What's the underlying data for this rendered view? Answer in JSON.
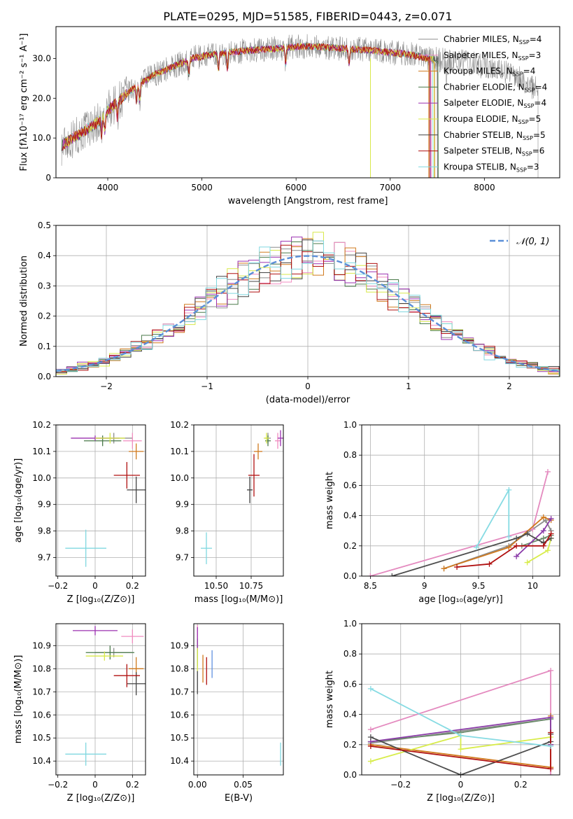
{
  "figure": {
    "title": "PLATE=0295, MJD=51585, FIBERID=0443, z=0.071"
  },
  "series_colors": [
    "#8c8c8c",
    "#f08cc0",
    "#d07a1e",
    "#4a7a4a",
    "#9b30b0",
    "#d8e84a",
    "#444444",
    "#b01010",
    "#80d8e0"
  ],
  "chart_data": [
    {
      "id": "spectrum",
      "type": "line",
      "xlabel": "wavelength [Angstrom, rest frame]",
      "ylabel": "Flux [fλ10⁻¹⁷ erg cm⁻² s⁻¹ A⁻¹]",
      "xlim": [
        3450,
        8800
      ],
      "ylim": [
        0,
        38
      ],
      "xticks": [
        4000,
        5000,
        6000,
        7000,
        8000
      ],
      "yticks": [
        0,
        10,
        20,
        30
      ],
      "legend_position": "right",
      "legend": [
        {
          "model": "Chabrier MILES",
          "n": "4",
          "color": "#8c8c8c"
        },
        {
          "model": "Salpeter MILES",
          "n": "3",
          "color": "#f08cc0"
        },
        {
          "model": "Kroupa MILES",
          "n": "4",
          "color": "#d07a1e"
        },
        {
          "model": "Chabrier ELODIE",
          "n": "4",
          "color": "#4a7a4a"
        },
        {
          "model": "Salpeter ELODIE",
          "n": "4",
          "color": "#9b30b0"
        },
        {
          "model": "Kroupa ELODIE",
          "n": "5",
          "color": "#d8e84a"
        },
        {
          "model": "Chabrier STELIB",
          "n": "5",
          "color": "#444444"
        },
        {
          "model": "Salpeter STELIB",
          "n": "6",
          "color": "#b01010"
        },
        {
          "model": "Kroupa STELIB",
          "n": "3",
          "color": "#80d8e0"
        }
      ],
      "continuum_x": [
        3500,
        3700,
        3900,
        4000,
        4100,
        4300,
        4500,
        4700,
        4900,
        5100,
        5300,
        5500,
        5800,
        6000,
        6200,
        6500,
        6800,
        7000,
        7200,
        7400,
        7600,
        7800,
        8000,
        8200,
        8400,
        8500
      ],
      "continuum_y": [
        8,
        11,
        14,
        17,
        19,
        23,
        26,
        28,
        30,
        31,
        31.5,
        32,
        32.5,
        33,
        33,
        32.5,
        32,
        31.5,
        31,
        30,
        29.5,
        29,
        28,
        27,
        25,
        23
      ]
    },
    {
      "id": "residuals",
      "type": "histogram",
      "xlabel": "(data-model)/error",
      "ylabel": "Normed distribution",
      "xlim": [
        -2.5,
        2.5
      ],
      "ylim": [
        0,
        0.5
      ],
      "xticks": [
        -2,
        -1,
        0,
        1,
        2
      ],
      "yticks": [
        0.0,
        0.1,
        0.2,
        0.3,
        0.4,
        0.5
      ],
      "grid": true,
      "legend_position": "top-right",
      "reference_label": "𝒩(0, 1)"
    },
    {
      "id": "age-vs-Z",
      "type": "scatter",
      "xlabel": "Z [log₁₀(Z/Z⊙)]",
      "ylabel": "age  [log₁₀(age/yr)]",
      "xlim": [
        -0.21,
        0.27
      ],
      "ylim": [
        9.63,
        10.2
      ],
      "xticks": [
        -0.2,
        0.0,
        0.2
      ],
      "yticks": [
        9.7,
        9.8,
        9.9,
        10.0,
        10.1,
        10.2
      ],
      "grid": true,
      "points": [
        {
          "x": 0.1,
          "y": 10.15,
          "xerr": 0.1,
          "yerr": 0.02
        },
        {
          "x": 0.2,
          "y": 10.14,
          "xerr": 0.05,
          "yerr": 0.03
        },
        {
          "x": 0.22,
          "y": 10.1,
          "xerr": 0.04,
          "yerr": 0.03
        },
        {
          "x": 0.04,
          "y": 10.14,
          "xerr": 0.1,
          "yerr": 0.02
        },
        {
          "x": 0.0,
          "y": 10.15,
          "xerr": 0.13,
          "yerr": 0.01
        },
        {
          "x": 0.08,
          "y": 10.15,
          "xerr": 0.08,
          "yerr": 0.02
        },
        {
          "x": 0.22,
          "y": 9.955,
          "xerr": 0.05,
          "yerr": 0.05
        },
        {
          "x": 0.17,
          "y": 10.01,
          "xerr": 0.07,
          "yerr": 0.05
        },
        {
          "x": -0.05,
          "y": 9.735,
          "xerr": 0.11,
          "yerr": 0.07
        }
      ]
    },
    {
      "id": "age-vs-mass",
      "type": "scatter",
      "xlabel": "mass [log₁₀(M/M⊙)]",
      "ylabel": "",
      "xlim": [
        10.34,
        10.98
      ],
      "ylim": [
        9.63,
        10.2
      ],
      "xticks": [
        10.5,
        10.75
      ],
      "xticklabels": [
        "10.50",
        "10.75"
      ],
      "yticks": [
        9.7,
        9.8,
        9.9,
        10.0,
        10.1,
        10.2
      ],
      "grid": true,
      "points": [
        {
          "x": 10.87,
          "y": 10.15,
          "xerr": 0.02,
          "yerr": 0.02
        },
        {
          "x": 10.94,
          "y": 10.14,
          "xerr": 0.02,
          "yerr": 0.03
        },
        {
          "x": 10.8,
          "y": 10.1,
          "xerr": 0.03,
          "yerr": 0.03
        },
        {
          "x": 10.87,
          "y": 10.14,
          "xerr": 0.02,
          "yerr": 0.02
        },
        {
          "x": 10.96,
          "y": 10.15,
          "xerr": 0.02,
          "yerr": 0.03
        },
        {
          "x": 10.86,
          "y": 10.15,
          "xerr": 0.02,
          "yerr": 0.02
        },
        {
          "x": 10.74,
          "y": 9.955,
          "xerr": 0.02,
          "yerr": 0.05
        },
        {
          "x": 10.77,
          "y": 10.01,
          "xerr": 0.04,
          "yerr": 0.08
        },
        {
          "x": 10.43,
          "y": 9.735,
          "xerr": 0.04,
          "yerr": 0.06
        }
      ]
    },
    {
      "id": "mass-weight-vs-age",
      "type": "line",
      "xlabel": "age  [log₁₀(age/yr)]",
      "ylabel": "mass weight",
      "xlim": [
        8.42,
        10.25
      ],
      "ylim": [
        0,
        1.0
      ],
      "xticks": [
        8.5,
        9.0,
        9.5,
        10.0
      ],
      "yticks": [
        0.0,
        0.2,
        0.4,
        0.6,
        0.8,
        1.0
      ],
      "grid": true,
      "series": [
        {
          "x": [
            9.18,
            9.78,
            10.12,
            10.17
          ],
          "y": [
            0.05,
            0.2,
            0.37,
            0.3
          ]
        },
        {
          "x": [
            8.5,
            10.0,
            10.14
          ],
          "y": [
            0.0,
            0.31,
            0.69
          ]
        },
        {
          "x": [
            9.18,
            9.78,
            10.1,
            10.17
          ],
          "y": [
            0.05,
            0.19,
            0.39,
            0.37
          ]
        },
        {
          "x": [
            9.9,
            10.1,
            10.17
          ],
          "y": [
            0.2,
            0.25,
            0.27
          ]
        },
        {
          "x": [
            9.85,
            10.1,
            10.17
          ],
          "y": [
            0.13,
            0.3,
            0.38
          ]
        },
        {
          "x": [
            9.95,
            10.14,
            10.17
          ],
          "y": [
            0.09,
            0.17,
            0.25
          ]
        },
        {
          "x": [
            8.7,
            9.85,
            9.95,
            10.1,
            10.17
          ],
          "y": [
            0.0,
            0.25,
            0.28,
            0.22,
            0.25
          ]
        },
        {
          "x": [
            9.3,
            9.6,
            9.85,
            10.1,
            10.17
          ],
          "y": [
            0.06,
            0.08,
            0.2,
            0.2,
            0.28
          ]
        },
        {
          "x": [
            9.48,
            9.78,
            9.78
          ],
          "y": [
            0.19,
            0.57,
            0.26
          ]
        }
      ]
    },
    {
      "id": "mass-vs-Z",
      "type": "scatter",
      "xlabel": "Z [log₁₀(Z/Z⊙)]",
      "ylabel": "mass [log₁₀(M/M⊙)]",
      "xlim": [
        -0.21,
        0.27
      ],
      "ylim": [
        10.34,
        10.995
      ],
      "xticks": [
        -0.2,
        0.0,
        0.2
      ],
      "yticks": [
        10.4,
        10.5,
        10.6,
        10.7,
        10.8,
        10.9
      ],
      "grid": true,
      "points": [
        {
          "x": 0.1,
          "y": 10.87,
          "xerr": 0.1,
          "yerr": 0.02
        },
        {
          "x": 0.2,
          "y": 10.94,
          "xerr": 0.06,
          "yerr": 0.03
        },
        {
          "x": 0.22,
          "y": 10.8,
          "xerr": 0.04,
          "yerr": 0.05
        },
        {
          "x": 0.08,
          "y": 10.87,
          "xerr": 0.13,
          "yerr": 0.03
        },
        {
          "x": 0.0,
          "y": 10.965,
          "xerr": 0.12,
          "yerr": 0.02
        },
        {
          "x": 0.05,
          "y": 10.855,
          "xerr": 0.1,
          "yerr": 0.02
        },
        {
          "x": 0.22,
          "y": 10.735,
          "xerr": 0.05,
          "yerr": 0.05
        },
        {
          "x": 0.17,
          "y": 10.77,
          "xerr": 0.07,
          "yerr": 0.05
        },
        {
          "x": -0.05,
          "y": 10.43,
          "xerr": 0.11,
          "yerr": 0.05
        }
      ]
    },
    {
      "id": "mass-vs-EBV",
      "type": "scatter",
      "xlabel": "E(B-V)",
      "ylabel": "",
      "xlim": [
        -0.004,
        0.094
      ],
      "ylim": [
        10.34,
        10.995
      ],
      "xticks": [
        0.0,
        0.05
      ],
      "xticklabels": [
        "0.00",
        "0.05"
      ],
      "yticks": [
        10.4,
        10.5,
        10.6,
        10.7,
        10.8,
        10.9
      ],
      "grid": true,
      "points": [
        {
          "x": 0.0,
          "y": 10.86,
          "xerr": 0,
          "yerr": 0.06
        },
        {
          "x": 0.0,
          "y": 10.94,
          "xerr": 0,
          "yerr": 0.05
        },
        {
          "x": 0.006,
          "y": 10.8,
          "xerr": 0,
          "yerr": 0.06
        },
        {
          "x": 0.0,
          "y": 10.87,
          "xerr": 0,
          "yerr": 0.06
        },
        {
          "x": 0.0,
          "y": 10.93,
          "xerr": 0,
          "yerr": 0.05
        },
        {
          "x": 0.0,
          "y": 10.84,
          "xerr": 0,
          "yerr": 0.05
        },
        {
          "x": 0.0,
          "y": 10.74,
          "xerr": 0,
          "yerr": 0.05
        },
        {
          "x": 0.01,
          "y": 10.79,
          "xerr": 0,
          "yerr": 0.06
        },
        {
          "x": 0.091,
          "y": 10.43,
          "xerr": 0,
          "yerr": 0.05
        }
      ],
      "extra_point": {
        "x": 0.016,
        "y": 10.82,
        "xerr": 0,
        "yerr": 0.06,
        "color": "#6090e0"
      }
    },
    {
      "id": "mass-weight-vs-Z",
      "type": "line",
      "xlabel": "Z [log₁₀(Z/Z⊙)]",
      "ylabel": "mass weight",
      "xlim": [
        -0.33,
        0.33
      ],
      "ylim": [
        0,
        1.0
      ],
      "xticks": [
        -0.2,
        0.0,
        0.2
      ],
      "yticks": [
        0.0,
        0.2,
        0.4,
        0.6,
        0.8,
        1.0
      ],
      "grid": true,
      "series": [
        {
          "x": [
            -0.3,
            0.3,
            0.3
          ],
          "y": [
            0.21,
            0.37,
            0.05
          ]
        },
        {
          "x": [
            -0.3,
            0.3,
            0.3
          ],
          "y": [
            0.3,
            0.69,
            0.0
          ]
        },
        {
          "x": [
            -0.3,
            0.3,
            0.3
          ],
          "y": [
            0.2,
            0.05,
            0.39
          ]
        },
        {
          "x": [
            -0.3,
            0.0,
            0.3,
            0.3
          ],
          "y": [
            0.22,
            0.28,
            0.37,
            0.2
          ]
        },
        {
          "x": [
            -0.3,
            0.3,
            0.3
          ],
          "y": [
            0.22,
            0.38,
            0.2
          ]
        },
        {
          "x": [
            -0.3,
            0.0,
            0.0,
            0.3
          ],
          "y": [
            0.09,
            0.26,
            0.17,
            0.25
          ]
        },
        {
          "x": [
            -0.3,
            0.0,
            0.3,
            0.3
          ],
          "y": [
            0.25,
            0.0,
            0.22,
            0.27
          ]
        },
        {
          "x": [
            -0.3,
            0.3,
            0.3
          ],
          "y": [
            0.19,
            0.04,
            0.28
          ]
        },
        {
          "x": [
            -0.3,
            0.0,
            0.3
          ],
          "y": [
            0.57,
            0.26,
            0.19
          ]
        }
      ]
    }
  ]
}
